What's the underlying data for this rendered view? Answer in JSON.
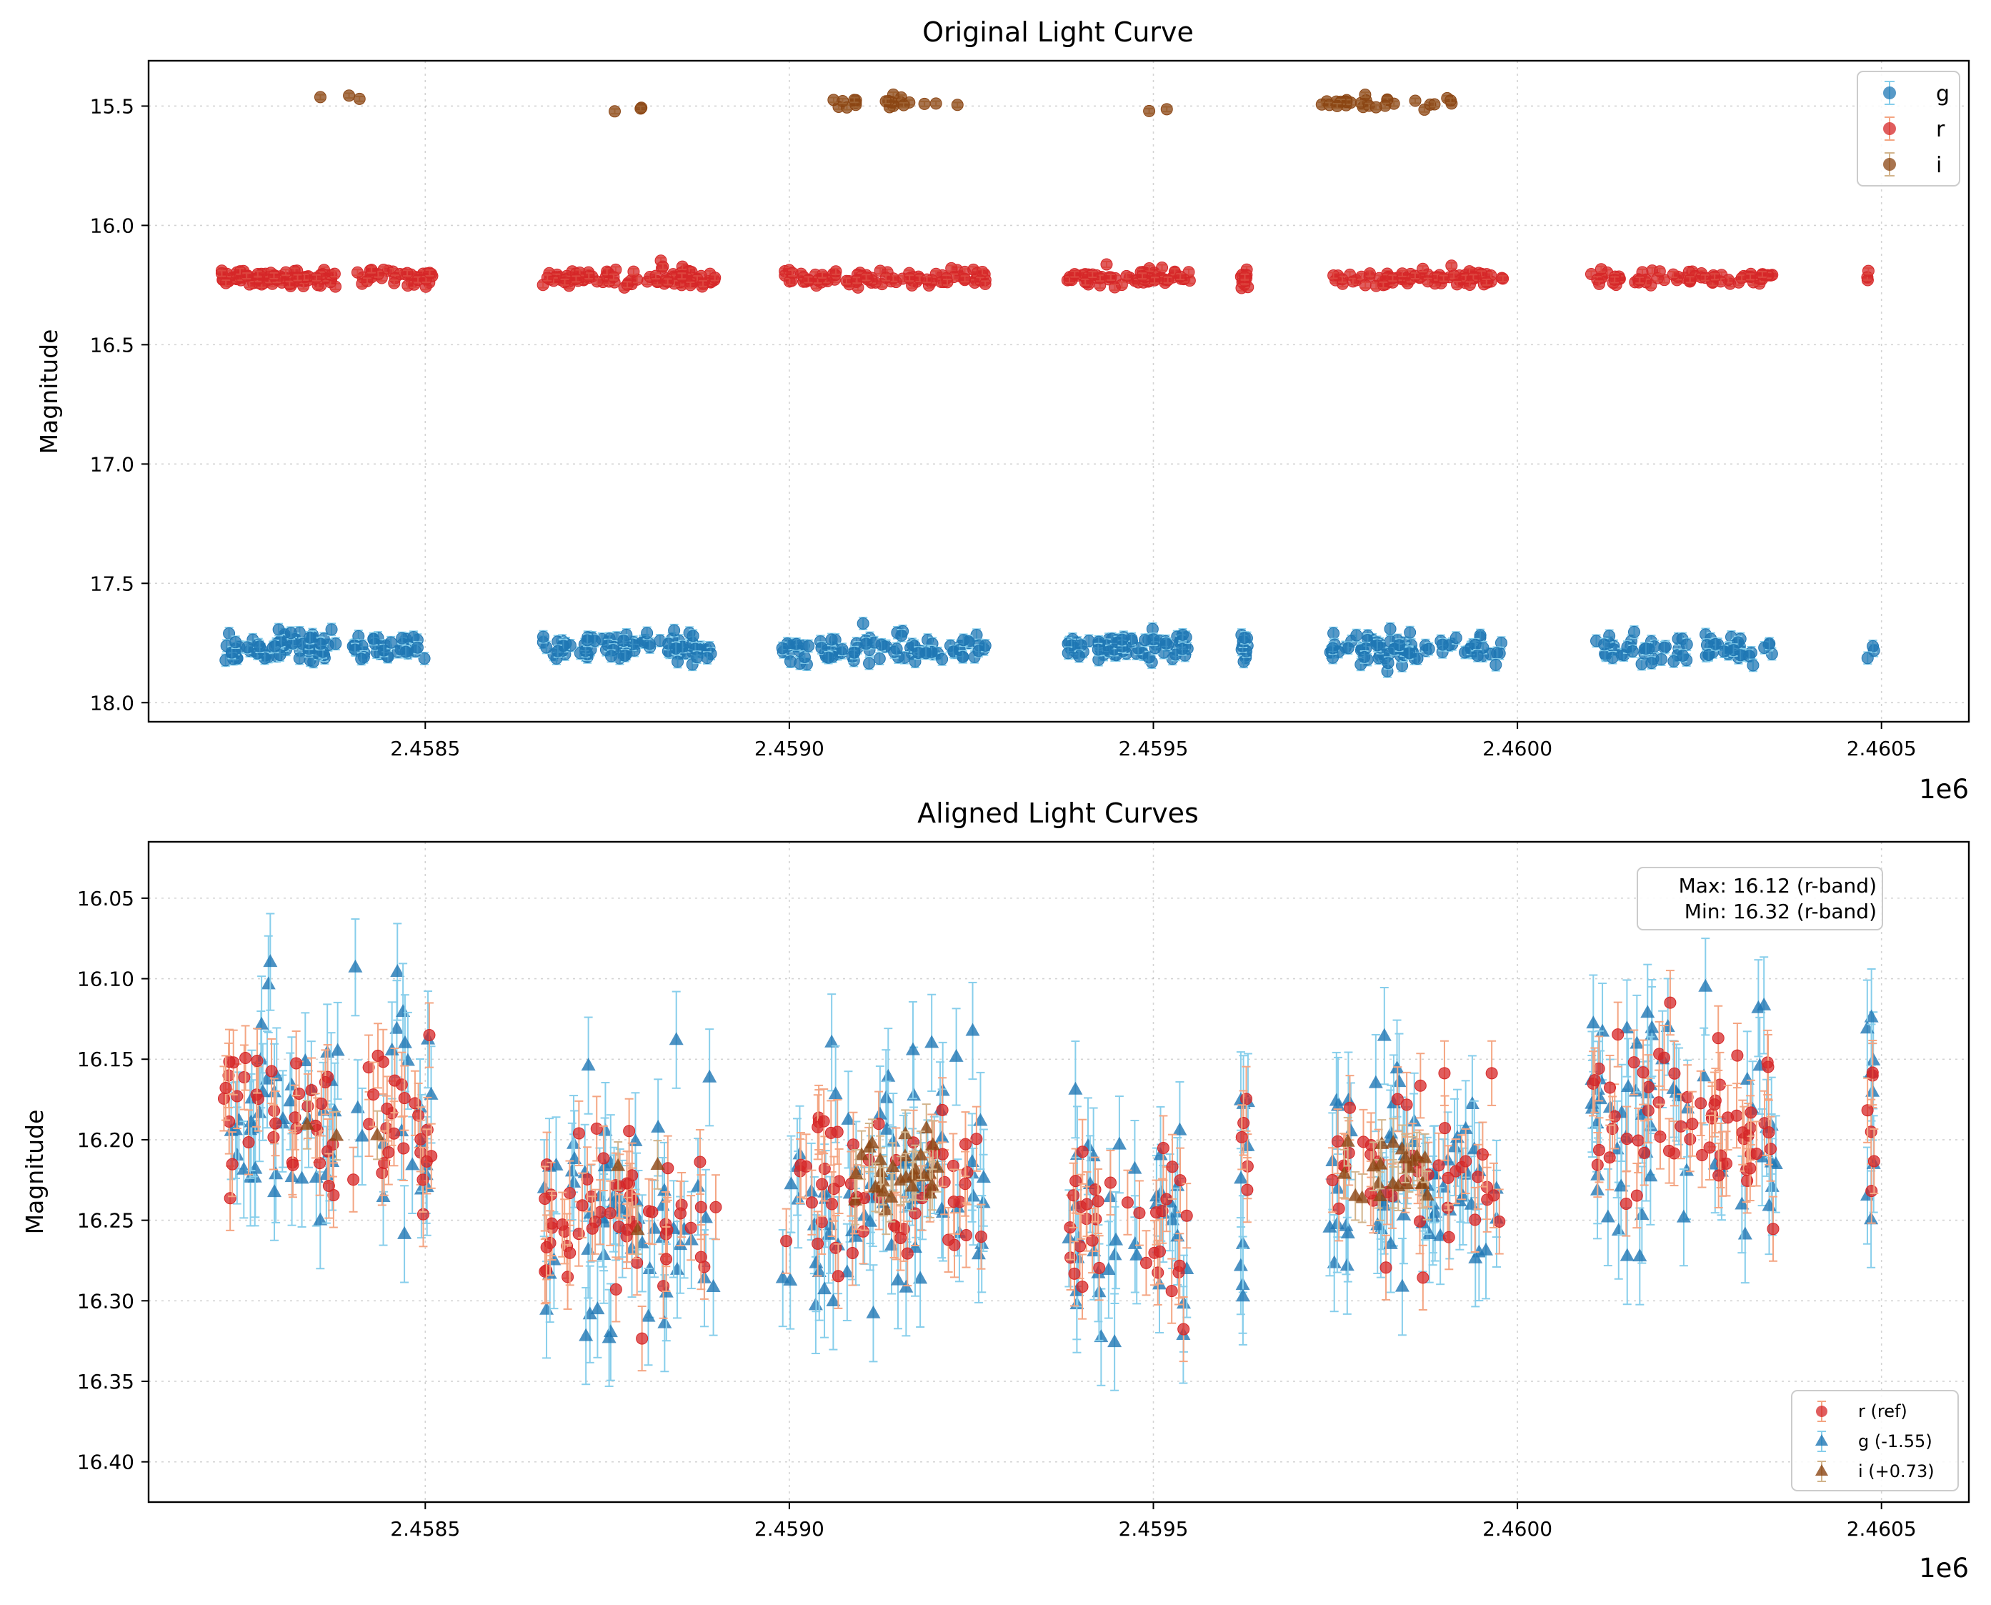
{
  "colors": {
    "g": "#1f77b4",
    "g_err": "#87ceeb",
    "r": "#d62728",
    "r_err": "#f4a582",
    "i": "#8b4513",
    "i_err": "#d2b48c"
  },
  "chart_data": [
    {
      "type": "scatter",
      "title": "Original Light Curve",
      "xlabel": "",
      "ylabel": "Magnitude",
      "x_offset_label": "1e6",
      "xlim": [
        2.45812,
        2.46062
      ],
      "ylim": [
        18.08,
        15.31
      ],
      "y_inverted": true,
      "grid": true,
      "xticks": [
        2.4585,
        2.459,
        2.4595,
        2.46,
        2.4605
      ],
      "xtick_labels": [
        "2.4585",
        "2.4590",
        "2.4595",
        "2.4600",
        "2.4605"
      ],
      "yticks": [
        15.5,
        16.0,
        16.5,
        17.0,
        17.5,
        18.0
      ],
      "ytick_labels": [
        "15.5",
        "16.0",
        "16.5",
        "17.0",
        "17.5",
        "18.0"
      ],
      "legend": {
        "position": "top-right",
        "entries": [
          "g",
          "r",
          "i"
        ]
      },
      "x_unit_scale": 1000000,
      "seasons": [
        [
          2.45822,
          2.45838,
          0.35
        ],
        [
          2.4584,
          2.45851,
          0.15
        ],
        [
          2.45866,
          2.4589,
          0.45
        ],
        [
          2.45899,
          2.45927,
          0.4
        ],
        [
          2.45938,
          2.45955,
          0.3
        ],
        [
          2.45962,
          2.45963,
          0.05
        ],
        [
          2.45974,
          2.45998,
          0.4
        ],
        [
          2.4601,
          2.46036,
          0.3
        ],
        [
          2.46048,
          2.46049,
          0.03
        ]
      ],
      "series": [
        {
          "name": "g",
          "base_mag": 17.77,
          "scatter": 0.05,
          "err": 0.025,
          "marker": "circle",
          "count": 520
        },
        {
          "name": "r",
          "base_mag": 16.22,
          "scatter": 0.03,
          "err": 0.012,
          "marker": "circle",
          "count": 520
        },
        {
          "name": "i",
          "base_mag": 15.49,
          "scatter": 0.02,
          "err": 0.01,
          "marker": "circle",
          "clusters": [
            [
              2.45838,
              15.47,
              3
            ],
            [
              2.45877,
              15.51,
              3
            ],
            [
              2.4591,
              15.5,
              6
            ],
            [
              2.45915,
              15.48,
              16
            ],
            [
              2.4595,
              15.51,
              2
            ],
            [
              2.45982,
              15.49,
              25
            ],
            [
              2.45988,
              15.48,
              4
            ]
          ]
        }
      ]
    },
    {
      "type": "scatter",
      "title": "Aligned Light Curves",
      "xlabel": "",
      "ylabel": "Magnitude",
      "x_offset_label": "1e6",
      "xlim": [
        2.45812,
        2.46062
      ],
      "ylim": [
        16.425,
        16.015
      ],
      "y_inverted": true,
      "grid": true,
      "xticks": [
        2.4585,
        2.459,
        2.4595,
        2.46,
        2.4605
      ],
      "xtick_labels": [
        "2.4585",
        "2.4590",
        "2.4595",
        "2.4600",
        "2.4605"
      ],
      "yticks": [
        16.05,
        16.1,
        16.15,
        16.2,
        16.25,
        16.3,
        16.35,
        16.4
      ],
      "ytick_labels": [
        "16.05",
        "16.10",
        "16.15",
        "16.20",
        "16.25",
        "16.30",
        "16.35",
        "16.40"
      ],
      "legend": {
        "position": "bottom-right",
        "entries": [
          "r (ref)",
          "g (-1.55)",
          "i (+0.73)"
        ]
      },
      "annotation": {
        "line1": "Max: 16.12 (r-band)",
        "line2": "Min: 16.32 (r-band)",
        "max_mag": 16.12,
        "min_mag": 16.32,
        "band": "r"
      },
      "offsets": {
        "g": -1.55,
        "i": 0.73
      },
      "series": [
        {
          "name": "r (ref)",
          "marker": "circle",
          "err": 0.02,
          "count": 330
        },
        {
          "name": "g (-1.55)",
          "marker": "triangle",
          "err": 0.03,
          "count": 380
        },
        {
          "name": "i (+0.73)",
          "marker": "triangle",
          "err": 0.015,
          "clusters": [
            [
              2.45838,
              16.19,
              3
            ],
            [
              2.45877,
              16.24,
              3
            ],
            [
              2.45915,
              16.22,
              30
            ],
            [
              2.45982,
              16.225,
              22
            ]
          ]
        }
      ],
      "season_means": [
        [
          2.45822,
          2.45838,
          16.185
        ],
        [
          2.4584,
          2.45851,
          16.19
        ],
        [
          2.45866,
          2.4589,
          16.245
        ],
        [
          2.45899,
          2.45927,
          16.225
        ],
        [
          2.45938,
          2.45955,
          16.255
        ],
        [
          2.45962,
          2.45963,
          16.225
        ],
        [
          2.45974,
          2.45998,
          16.225
        ],
        [
          2.4601,
          2.46036,
          16.19
        ],
        [
          2.46048,
          2.46049,
          16.19
        ]
      ]
    }
  ]
}
